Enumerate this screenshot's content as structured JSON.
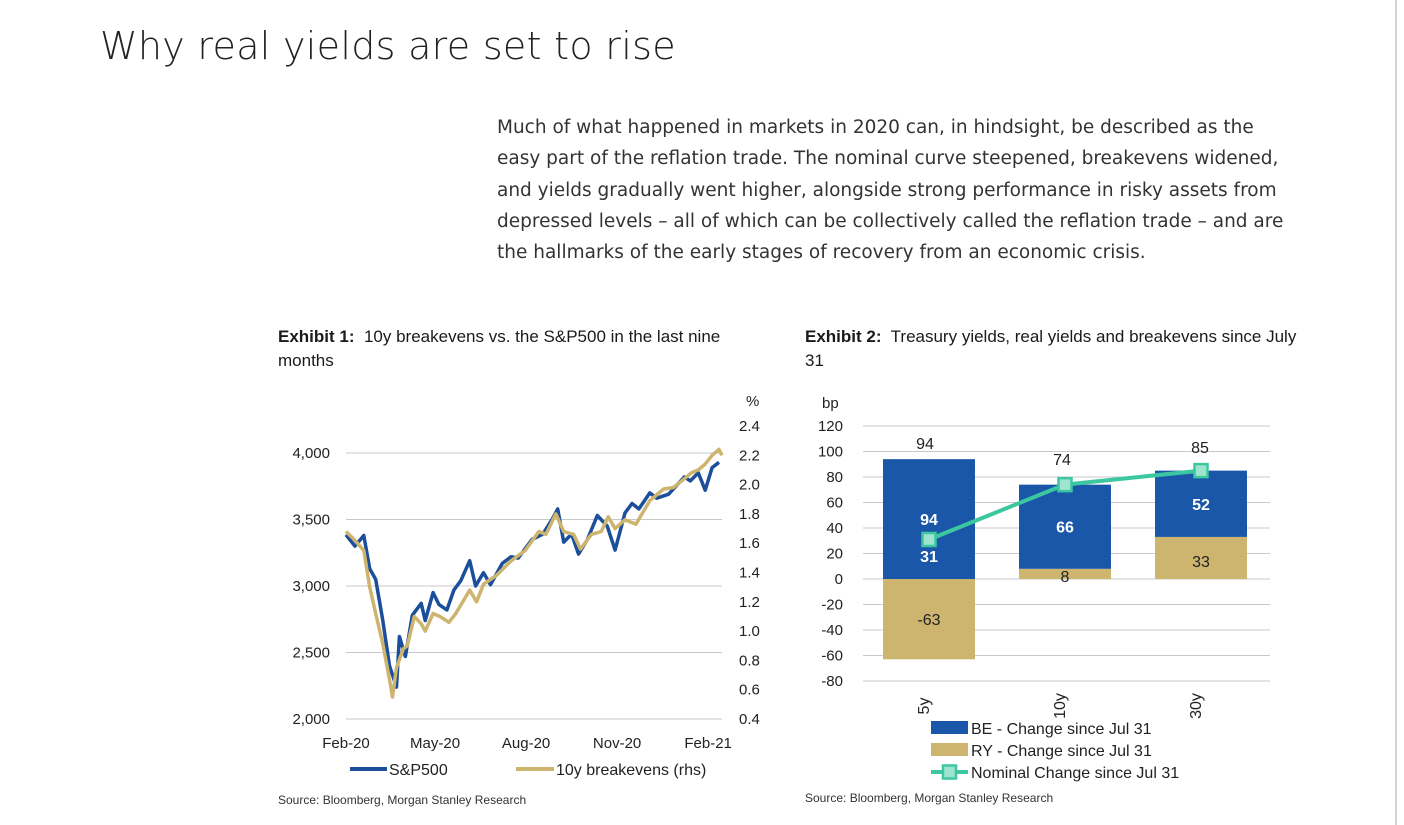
{
  "page": {
    "title": "Why real yields are set to rise",
    "intro": "Much of what happened in markets in 2020 can, in hindsight, be described as the easy part of the reflation trade. The nominal curve steepened, breakevens widened, and yields gradually went higher, alongside strong performance in risky assets from depressed levels – all of which can be collectively called the reflation trade – and are the hallmarks of the early stages of recovery from an economic crisis."
  },
  "exhibit1": {
    "label": "Exhibit 1:",
    "title": "10y breakevens vs. the S&P500 in the last nine months",
    "source": "Source: Bloomberg, Morgan Stanley Research"
  },
  "exhibit2": {
    "label": "Exhibit 2:",
    "title": "Treasury yields, real yields and breakevens since July 31",
    "source": "Source: Bloomberg, Morgan Stanley Research"
  },
  "chart_data": [
    {
      "type": "line",
      "title": "10y breakevens vs. the S&P500 in the last nine months",
      "x_ticks": [
        "Feb-20",
        "May-20",
        "Aug-20",
        "Nov-20",
        "Feb-21"
      ],
      "xlim": [
        "2020-02-01",
        "2021-02-15"
      ],
      "y_left": {
        "label": "",
        "lim": [
          2000,
          4000
        ],
        "ticks": [
          "2,000",
          "2,500",
          "3,000",
          "3,500",
          "4,000"
        ]
      },
      "y_right": {
        "label": "%",
        "lim": [
          0.4,
          2.4
        ],
        "ticks": [
          "0.4",
          "0.6",
          "0.8",
          "1.0",
          "1.2",
          "1.4",
          "1.6",
          "1.8",
          "2.0",
          "2.2",
          "2.4"
        ]
      },
      "grid": true,
      "legend": "bottom",
      "colors": {
        "S&P500": "#1b4f9c",
        "10y breakevens (rhs)": "#cdb46f"
      },
      "series": [
        {
          "name": "S&P500",
          "axis": "left",
          "points": [
            [
              "2020-02-01",
              3385
            ],
            [
              "2020-02-10",
              3300
            ],
            [
              "2020-02-19",
              3380
            ],
            [
              "2020-02-25",
              3130
            ],
            [
              "2020-03-02",
              3050
            ],
            [
              "2020-03-09",
              2750
            ],
            [
              "2020-03-16",
              2400
            ],
            [
              "2020-03-23",
              2240
            ],
            [
              "2020-03-26",
              2620
            ],
            [
              "2020-04-01",
              2470
            ],
            [
              "2020-04-08",
              2780
            ],
            [
              "2020-04-17",
              2870
            ],
            [
              "2020-04-21",
              2740
            ],
            [
              "2020-04-29",
              2950
            ],
            [
              "2020-05-05",
              2860
            ],
            [
              "2020-05-13",
              2820
            ],
            [
              "2020-05-20",
              2970
            ],
            [
              "2020-05-27",
              3040
            ],
            [
              "2020-06-05",
              3190
            ],
            [
              "2020-06-11",
              3000
            ],
            [
              "2020-06-19",
              3100
            ],
            [
              "2020-06-26",
              3010
            ],
            [
              "2020-07-08",
              3170
            ],
            [
              "2020-07-17",
              3220
            ],
            [
              "2020-07-24",
              3210
            ],
            [
              "2020-08-07",
              3350
            ],
            [
              "2020-08-18",
              3390
            ],
            [
              "2020-08-28",
              3510
            ],
            [
              "2020-09-02",
              3580
            ],
            [
              "2020-09-08",
              3330
            ],
            [
              "2020-09-16",
              3390
            ],
            [
              "2020-09-23",
              3240
            ],
            [
              "2020-10-02",
              3350
            ],
            [
              "2020-10-12",
              3530
            ],
            [
              "2020-10-22",
              3450
            ],
            [
              "2020-10-30",
              3270
            ],
            [
              "2020-11-09",
              3550
            ],
            [
              "2020-11-16",
              3620
            ],
            [
              "2020-11-23",
              3580
            ],
            [
              "2020-12-04",
              3700
            ],
            [
              "2020-12-11",
              3660
            ],
            [
              "2020-12-23",
              3690
            ],
            [
              "2021-01-08",
              3820
            ],
            [
              "2021-01-14",
              3790
            ],
            [
              "2021-01-22",
              3850
            ],
            [
              "2021-01-29",
              3720
            ],
            [
              "2021-02-05",
              3890
            ],
            [
              "2021-02-12",
              3930
            ]
          ]
        },
        {
          "name": "10y breakevens (rhs)",
          "axis": "right",
          "points": [
            [
              "2020-02-01",
              1.68
            ],
            [
              "2020-02-10",
              1.62
            ],
            [
              "2020-02-19",
              1.55
            ],
            [
              "2020-02-25",
              1.3
            ],
            [
              "2020-03-02",
              1.12
            ],
            [
              "2020-03-09",
              0.92
            ],
            [
              "2020-03-16",
              0.67
            ],
            [
              "2020-03-19",
              0.55
            ],
            [
              "2020-03-23",
              0.75
            ],
            [
              "2020-03-30",
              0.88
            ],
            [
              "2020-04-03",
              0.9
            ],
            [
              "2020-04-10",
              1.1
            ],
            [
              "2020-04-17",
              1.05
            ],
            [
              "2020-04-21",
              1.0
            ],
            [
              "2020-04-29",
              1.12
            ],
            [
              "2020-05-06",
              1.1
            ],
            [
              "2020-05-15",
              1.06
            ],
            [
              "2020-05-22",
              1.12
            ],
            [
              "2020-06-05",
              1.28
            ],
            [
              "2020-06-12",
              1.2
            ],
            [
              "2020-06-19",
              1.32
            ],
            [
              "2020-07-02",
              1.38
            ],
            [
              "2020-07-17",
              1.48
            ],
            [
              "2020-07-31",
              1.55
            ],
            [
              "2020-08-14",
              1.68
            ],
            [
              "2020-08-21",
              1.66
            ],
            [
              "2020-08-31",
              1.8
            ],
            [
              "2020-09-08",
              1.68
            ],
            [
              "2020-09-18",
              1.66
            ],
            [
              "2020-09-25",
              1.56
            ],
            [
              "2020-10-06",
              1.66
            ],
            [
              "2020-10-16",
              1.68
            ],
            [
              "2020-10-23",
              1.78
            ],
            [
              "2020-10-30",
              1.7
            ],
            [
              "2020-11-09",
              1.76
            ],
            [
              "2020-11-20",
              1.73
            ],
            [
              "2020-12-04",
              1.89
            ],
            [
              "2020-12-11",
              1.93
            ],
            [
              "2020-12-18",
              1.97
            ],
            [
              "2020-12-28",
              1.98
            ],
            [
              "2021-01-08",
              2.04
            ],
            [
              "2021-01-15",
              2.08
            ],
            [
              "2021-01-22",
              2.1
            ],
            [
              "2021-01-29",
              2.14
            ],
            [
              "2021-02-05",
              2.2
            ],
            [
              "2021-02-12",
              2.24
            ],
            [
              "2021-02-15",
              2.2
            ]
          ]
        }
      ]
    },
    {
      "type": "bar",
      "title": "Treasury yields, real yields and breakevens since July 31",
      "ylabel": "bp",
      "ylim": [
        -80,
        120
      ],
      "y_ticks": [
        -80,
        -60,
        -40,
        -20,
        0,
        20,
        40,
        60,
        80,
        100,
        120
      ],
      "categories": [
        "5y",
        "10y",
        "30y"
      ],
      "grid": true,
      "legend": "bottom",
      "series": [
        {
          "name": "BE - Change since Jul 31",
          "kind": "bar",
          "color": "#1b57a8",
          "values": [
            94,
            66,
            52
          ]
        },
        {
          "name": "RY - Change since Jul 31",
          "kind": "bar",
          "color": "#cdb46f",
          "values": [
            -63,
            8,
            33
          ]
        },
        {
          "name": "Nominal Change since Jul 31",
          "kind": "line",
          "color": "#3cc7a0",
          "marker_fill": "#9fe4cf",
          "values": [
            31,
            74,
            85
          ]
        }
      ],
      "labels": {
        "be": [
          "94",
          "66",
          "52"
        ],
        "ry": [
          "-63",
          "8",
          "33"
        ],
        "nominal": [
          "31",
          "74",
          "85"
        ]
      }
    }
  ]
}
